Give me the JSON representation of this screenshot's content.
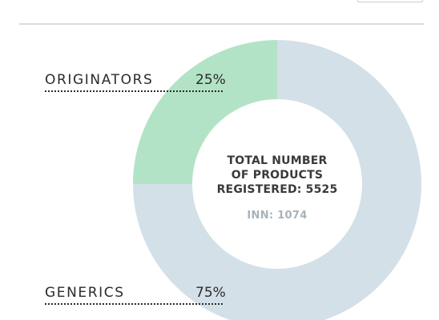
{
  "chart_data": {
    "type": "pie",
    "categories": [
      "ORIGINATORS",
      "GENERICS"
    ],
    "values": [
      25,
      75
    ],
    "value_labels": [
      "25%",
      "75%"
    ],
    "colors": [
      "#b3e3c6",
      "#d3e0e8"
    ],
    "center_lines": [
      "TOTAL NUMBER",
      "OF PRODUCTS",
      "REGISTERED: 5525"
    ],
    "center_subtext": "INN: 1074"
  }
}
